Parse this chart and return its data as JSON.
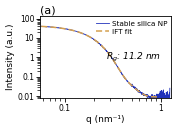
{
  "title": "(a)",
  "xlabel": "q (nm⁻¹)",
  "ylabel": "Intensity (a.u.)",
  "rg_text": "$R_g$: 11.2 nm",
  "legend_saxs": "Stable silica NP",
  "legend_ift": "IFT fit",
  "saxs_color": "#2233bb",
  "ift_color": "#d4a050",
  "xlim": [
    0.055,
    1.3
  ],
  "ylim": [
    0.008,
    130
  ],
  "background_color": "#ffffff",
  "figsize": [
    1.77,
    1.3
  ],
  "dpi": 100
}
